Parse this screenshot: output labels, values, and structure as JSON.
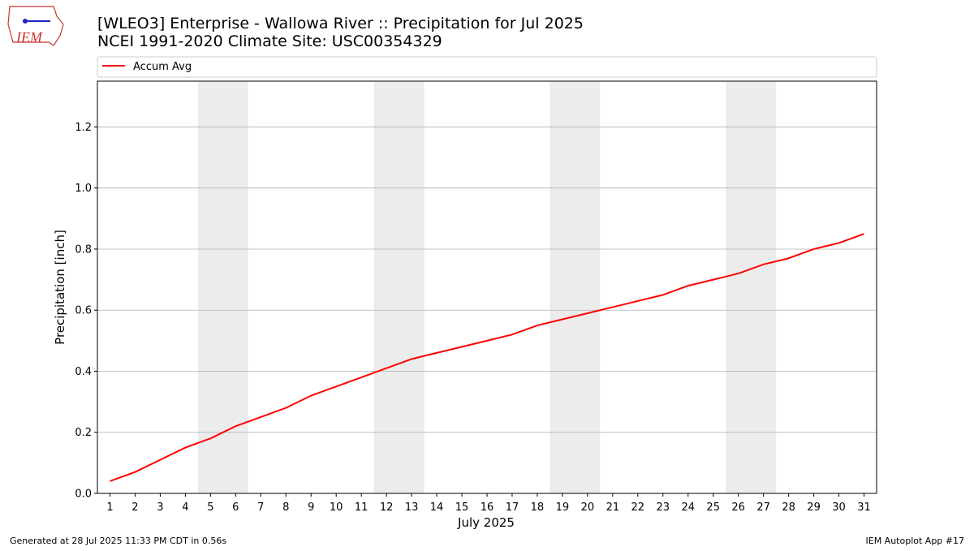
{
  "logo_text": "IEM",
  "footer_left": "Generated at 28 Jul 2025 11:33 PM CDT in 0.56s",
  "footer_right": "IEM Autoplot App #17",
  "chart_data": {
    "type": "line",
    "title": "[WLEO3] Enterprise - Wallowa River :: Precipitation for Jul 2025",
    "subtitle": "NCEI 1991-2020 Climate Site: USC00354329",
    "xlabel": "July 2025",
    "ylabel": "Precipitation [inch]",
    "x": [
      1,
      2,
      3,
      4,
      5,
      6,
      7,
      8,
      9,
      10,
      11,
      12,
      13,
      14,
      15,
      16,
      17,
      18,
      19,
      20,
      21,
      22,
      23,
      24,
      25,
      26,
      27,
      28,
      29,
      30,
      31
    ],
    "series": [
      {
        "name": "Accum Avg",
        "color": "#ff0000",
        "values": [
          0.04,
          0.07,
          0.11,
          0.15,
          0.18,
          0.22,
          0.25,
          0.28,
          0.32,
          0.35,
          0.38,
          0.41,
          0.44,
          0.46,
          0.48,
          0.5,
          0.52,
          0.55,
          0.57,
          0.59,
          0.61,
          0.63,
          0.65,
          0.68,
          0.7,
          0.72,
          0.75,
          0.77,
          0.8,
          0.82,
          0.85
        ]
      }
    ],
    "xlim": [
      0.5,
      31.5
    ],
    "xticks": [
      1,
      2,
      3,
      4,
      5,
      6,
      7,
      8,
      9,
      10,
      11,
      12,
      13,
      14,
      15,
      16,
      17,
      18,
      19,
      20,
      21,
      22,
      23,
      24,
      25,
      26,
      27,
      28,
      29,
      30,
      31
    ],
    "ylim": [
      0,
      1.35
    ],
    "yticks": [
      {
        "value": 0,
        "label": "0.0"
      },
      0.2,
      0.4,
      0.6,
      0.8,
      {
        "value": 1,
        "label": "1.0"
      },
      1.2
    ],
    "grid": true,
    "weekend_spans": [
      [
        4.5,
        6.5
      ],
      [
        11.5,
        13.5
      ],
      [
        18.5,
        20.5
      ],
      [
        25.5,
        27.5
      ]
    ],
    "weekend_color": "#ececec",
    "legend_position": "top"
  }
}
